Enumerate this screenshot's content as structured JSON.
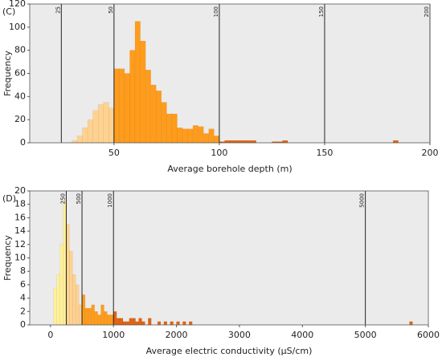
{
  "chart_data": [
    {
      "type": "histogram",
      "panel_label": "(C)",
      "xlabel": "Average borehole depth (m)",
      "ylabel": "Frequency",
      "xlim": [
        10,
        200
      ],
      "ylim": [
        0,
        120
      ],
      "xticks": [
        50,
        100,
        150,
        200
      ],
      "yticks": [
        0,
        20,
        40,
        60,
        80,
        100,
        120
      ],
      "vlines": [
        25,
        50,
        100,
        150,
        200
      ],
      "background": "#ebebeb",
      "series": [
        {
          "color": "#ffd28f",
          "bins": [
            30,
            32.5,
            35,
            37.5,
            40,
            42.5,
            45,
            47.5,
            50
          ],
          "counts": [
            2,
            6,
            13,
            20,
            28,
            33,
            35,
            30
          ]
        },
        {
          "color": "#ff9c1c",
          "bins": [
            50,
            52.5,
            55,
            57.5,
            60,
            62.5,
            65,
            67.5,
            70,
            72.5,
            75,
            77.5,
            80,
            82.5,
            85,
            87.5,
            90,
            92.5,
            95,
            97.5,
            100
          ],
          "counts": [
            64,
            64,
            60,
            80,
            105,
            88,
            63,
            50,
            45,
            35,
            25,
            25,
            13,
            12,
            12,
            15,
            14,
            8,
            12,
            6
          ]
        },
        {
          "color": "#e2640f",
          "bins": [
            100,
            102.5,
            105,
            107.5,
            110,
            112.5,
            115,
            117.5,
            120,
            122.5,
            125,
            127.5,
            130,
            132.5,
            135
          ],
          "counts": [
            1,
            2,
            2,
            2,
            2,
            2,
            2,
            0,
            0,
            0,
            1,
            1,
            2,
            0
          ]
        },
        {
          "color": "#e2640f",
          "bins": [
            182.5,
            185
          ],
          "counts": [
            2
          ]
        }
      ]
    },
    {
      "type": "histogram",
      "panel_label": "(D)",
      "xlabel": "Average electric conductivity (µS/cm)",
      "ylabel": "Frequency",
      "xlim": [
        -330,
        6000
      ],
      "ylim": [
        0,
        20
      ],
      "xticks": [
        0,
        1000,
        2000,
        3000,
        4000,
        5000,
        6000
      ],
      "yticks": [
        0,
        2,
        4,
        6,
        8,
        10,
        12,
        14,
        16,
        18,
        20
      ],
      "vlines": [
        250,
        500,
        1000,
        5000
      ],
      "background": "#ebebeb",
      "series": [
        {
          "color": "#fff09a",
          "bins": [
            50,
            100,
            150,
            200,
            250
          ],
          "counts": [
            5.5,
            7.5,
            12,
            18.5
          ]
        },
        {
          "color": "#ffd28f",
          "bins": [
            250,
            300,
            350,
            400,
            450,
            500
          ],
          "counts": [
            15,
            11,
            7.5,
            6,
            3
          ]
        },
        {
          "color": "#ff9c1c",
          "bins": [
            500,
            550,
            600,
            650,
            700,
            750,
            800,
            850,
            900,
            950,
            1000
          ],
          "counts": [
            4.5,
            2.5,
            2.5,
            3,
            2,
            1.5,
            3,
            2,
            1.5,
            1.5
          ]
        },
        {
          "color": "#e2640f",
          "bins": [
            1000,
            1050,
            1100,
            1150,
            1200,
            1250,
            1300,
            1350,
            1400,
            1450,
            1500,
            1550,
            1600,
            1650,
            1700,
            1750,
            1800,
            1850,
            1900,
            1950,
            2000,
            2050,
            2100,
            2150,
            2200,
            2250,
            2300
          ],
          "counts": [
            2,
            1,
            1,
            0.5,
            0.5,
            1,
            1,
            0.5,
            1,
            0.5,
            0,
            1,
            0,
            0,
            0.5,
            0,
            0.5,
            0,
            0.5,
            0,
            0.5,
            0,
            0.5,
            0,
            0.5,
            0
          ]
        },
        {
          "color": "#e2640f",
          "bins": [
            5700,
            5750
          ],
          "counts": [
            0.5
          ]
        }
      ]
    }
  ]
}
